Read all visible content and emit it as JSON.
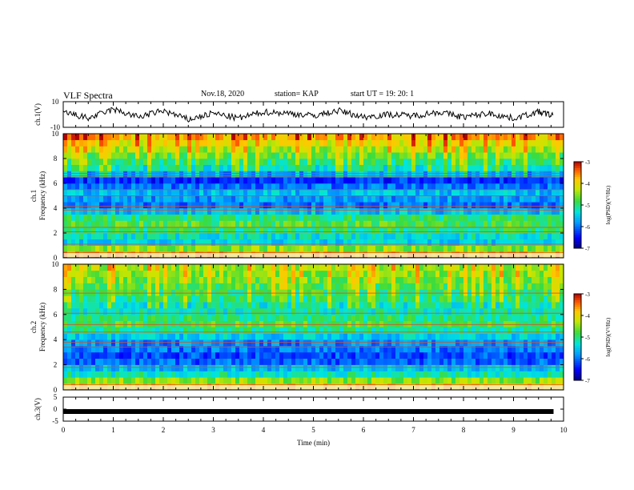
{
  "header": {
    "title": "VLF Spectra",
    "date": "Nov.18, 2020",
    "station": "station= KAP",
    "start": "start  UT  =   19: 20: 1"
  },
  "chart_data": [
    {
      "type": "line",
      "panel": "ch1-waveform",
      "ylabel": "ch.1(V)",
      "ylim": [
        -10,
        10
      ],
      "yticks": [
        "10",
        "-10"
      ],
      "x": [
        0,
        0.5,
        1,
        1.5,
        2,
        2.5,
        3,
        3.5,
        4,
        4.5,
        5,
        5.5,
        6,
        6.5,
        7,
        7.5,
        8,
        8.5,
        9,
        9.5,
        9.8
      ],
      "values": [
        2,
        -3,
        4,
        -2,
        3,
        -4,
        1,
        -3,
        2,
        1,
        -1,
        3,
        -2,
        0,
        -1,
        2,
        -2,
        1,
        -3,
        2,
        -1
      ]
    },
    {
      "type": "heatmap",
      "panel": "ch1-spectrogram",
      "ylabel": "ch.1\nFrequency (kHz)",
      "ylim": [
        0,
        10
      ],
      "yticks": [
        "0",
        "2",
        "4",
        "6",
        "8",
        "10"
      ],
      "colorbar": {
        "label": "log(PSD)(V²/Hz)",
        "range": [
          -7,
          -3
        ],
        "ticks": [
          "-3",
          "-4",
          "-5",
          "-6",
          "-7"
        ]
      },
      "freq_profile": [
        -3.6,
        -4.5,
        -5.5,
        -5.3,
        -5.0,
        -4.8,
        -5.0,
        -5.6,
        -6.0,
        -5.8,
        -5.6,
        -6.0,
        -6.3,
        -5.8,
        -5.3,
        -5.0,
        -4.7,
        -4.4,
        -4.1,
        -3.8
      ],
      "lines_khz": [
        0.4,
        1.1,
        2.1,
        2.45,
        3.85,
        4.15,
        5.0,
        5.5,
        6.6,
        6.8
      ]
    },
    {
      "type": "heatmap",
      "panel": "ch2-spectrogram",
      "ylabel": "ch.2\nFrequency (kHz)",
      "ylim": [
        0,
        10
      ],
      "yticks": [
        "0",
        "2",
        "4",
        "6",
        "8",
        "10"
      ],
      "colorbar": {
        "label": "log(PSD)(V²/Hz)",
        "range": [
          -7,
          -3
        ],
        "ticks": [
          "-3",
          "-4",
          "-5",
          "-6",
          "-7"
        ]
      },
      "freq_profile": [
        -3.8,
        -4.5,
        -5.2,
        -5.6,
        -6.1,
        -6.2,
        -6.0,
        -5.9,
        -5.5,
        -5.1,
        -4.8,
        -5.0,
        -5.2,
        -5.3,
        -5.0,
        -4.9,
        -4.8,
        -4.6,
        -4.5,
        -4.4
      ],
      "lines_khz": [
        0.4,
        1.8,
        3.4,
        3.8,
        4.6,
        5.2,
        6.1,
        7.7
      ]
    },
    {
      "type": "line",
      "panel": "ch3-waveform",
      "ylabel": "ch.3(V)",
      "ylim": [
        -5,
        5
      ],
      "yticks": [
        "5",
        "0",
        "-5"
      ],
      "x": [
        0,
        9.8
      ],
      "values": [
        -1,
        -1
      ]
    }
  ],
  "xaxis": {
    "label": "Time (min)",
    "range": [
      0,
      10
    ],
    "ticks": [
      "0",
      "1",
      "2",
      "3",
      "4",
      "5",
      "6",
      "7",
      "8",
      "9",
      "10"
    ]
  },
  "colors": {
    "axes": "#000000",
    "trace": "#000000"
  }
}
